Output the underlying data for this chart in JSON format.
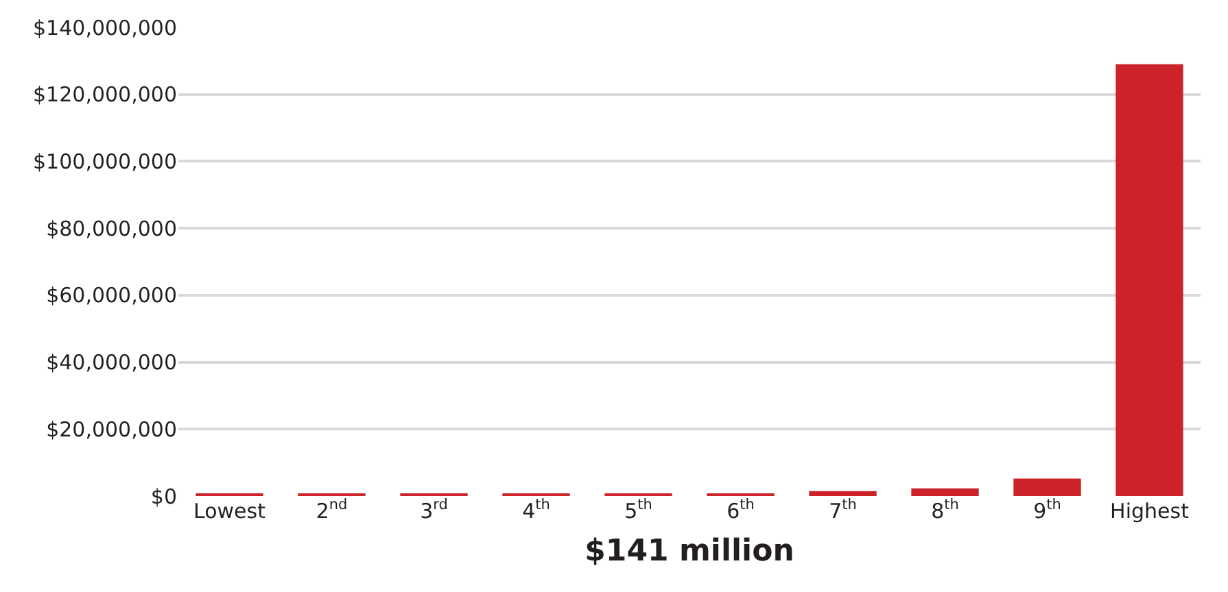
{
  "chart_data": {
    "type": "bar",
    "xlabel": "$141 million",
    "categories": [
      "Lowest",
      "2$^{nd}$",
      "3$^{rd}$",
      "4$^{th}$",
      "5$^{th}$",
      "6$^{th}$",
      "7$^{th}$",
      "8$^{th}$",
      "9$^{th}$",
      "Highest"
    ],
    "values": [
      500000,
      500000,
      500000,
      500000,
      500000,
      500000,
      1500000,
      2300000,
      5200000,
      129000000
    ],
    "color": "#cc2229",
    "ylim": [
      0,
      140000000
    ],
    "yticks": [
      {
        "value": 0,
        "label": "$0"
      },
      {
        "value": 20000000,
        "label": "$20,000,000"
      },
      {
        "value": 40000000,
        "label": "$40,000,000"
      },
      {
        "value": 60000000,
        "label": "$60,000,000"
      },
      {
        "value": 80000000,
        "label": "$80,000,000"
      },
      {
        "value": 100000000,
        "label": "$100,000,000"
      },
      {
        "value": 120000000,
        "label": "$120,000,000"
      },
      {
        "value": 140000000,
        "label": "$140,000,000"
      }
    ],
    "grid": "y"
  }
}
